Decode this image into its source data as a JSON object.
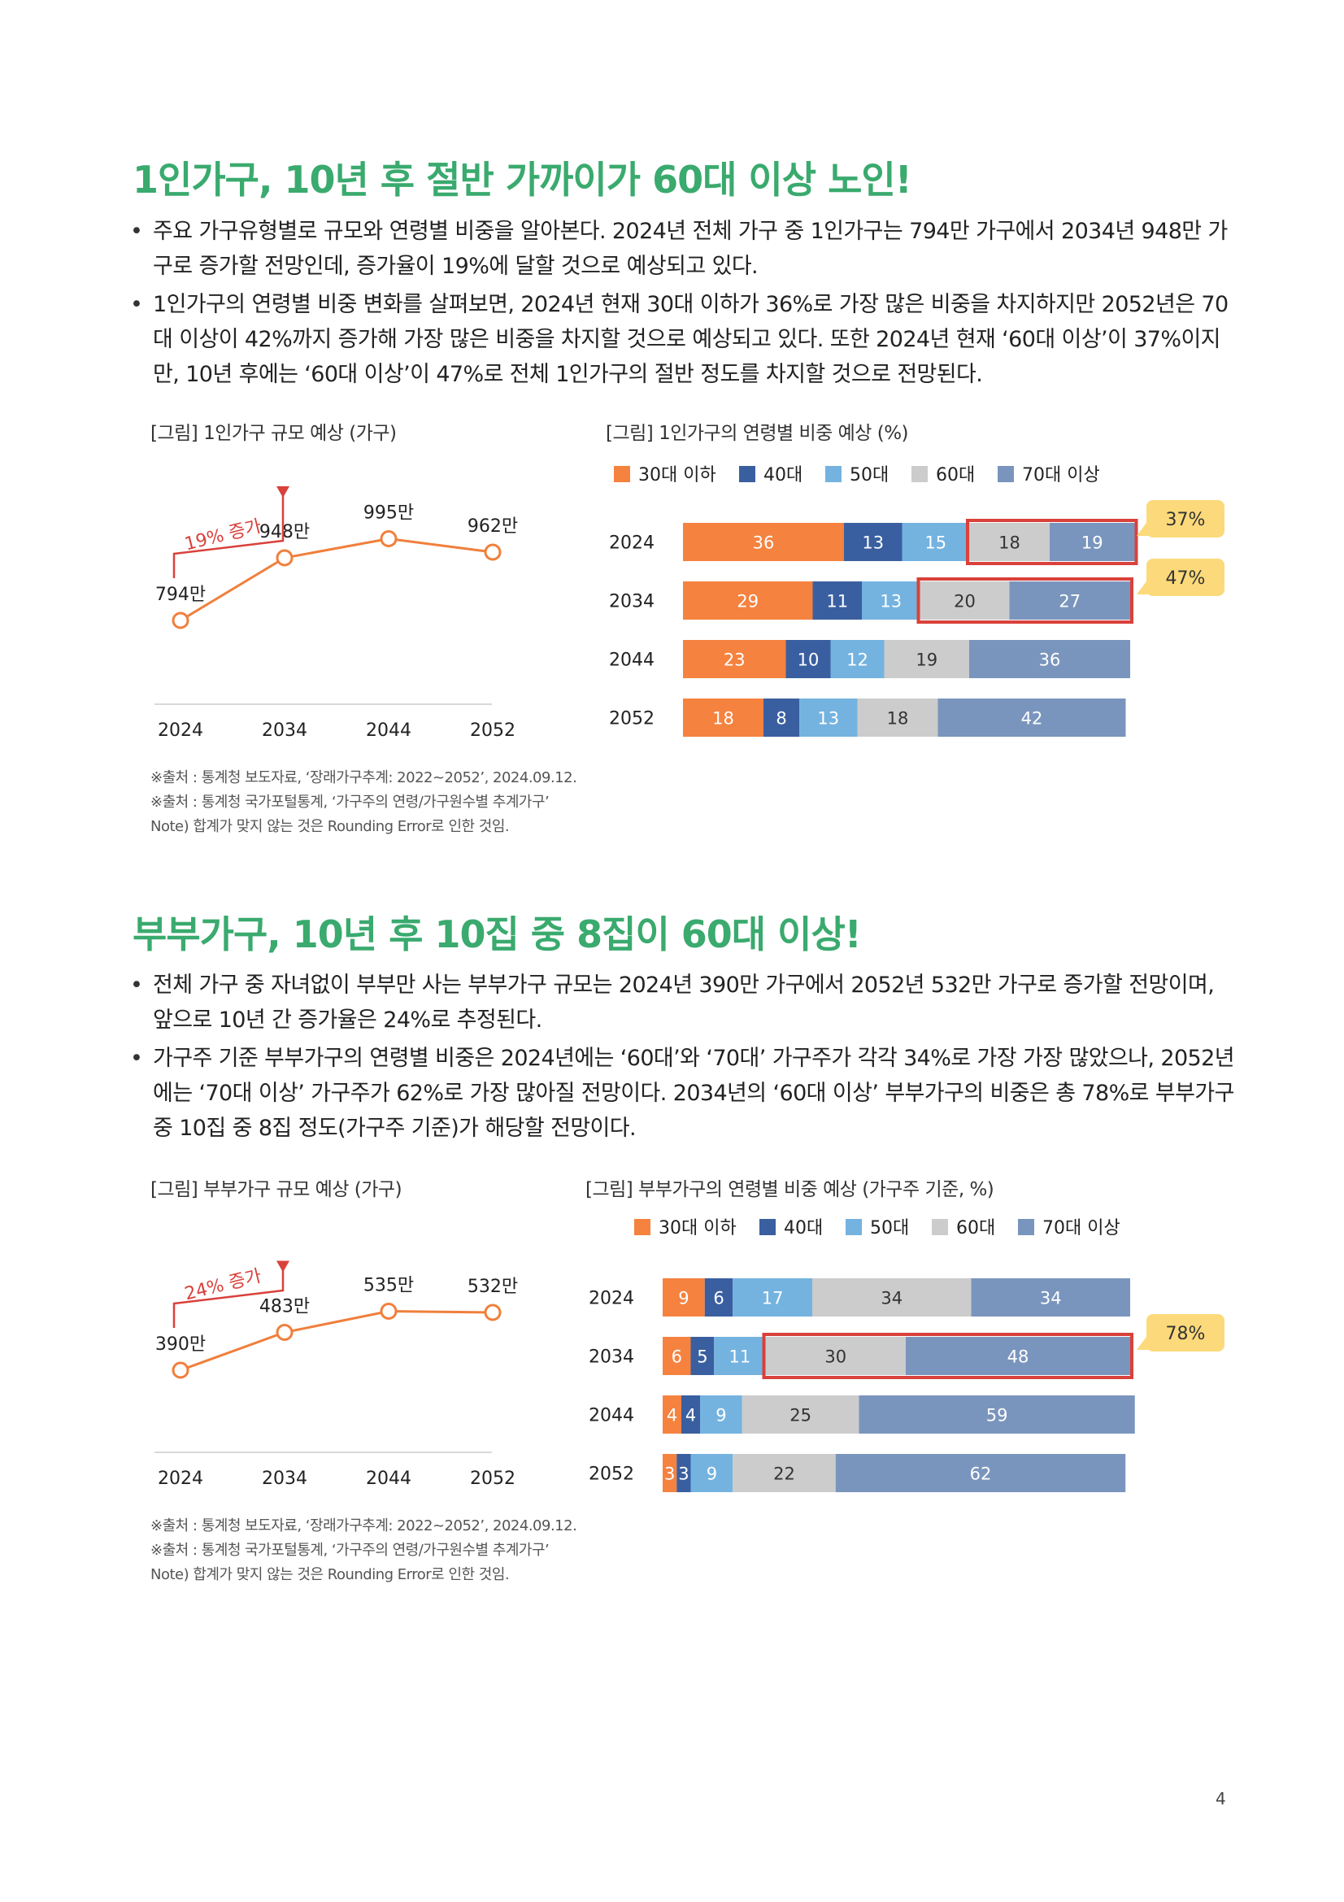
{
  "page_number": "4",
  "colors": {
    "title": "#3aaa6e",
    "line": "#f07f3c",
    "seg_30": "#f5823f",
    "seg_40": "#3a5fa0",
    "seg_50": "#74b3e0",
    "seg_60": "#cccccc",
    "seg_70": "#7a95bd",
    "highlight_box": "#d9413b",
    "callout_bg": "#fcd97a",
    "arrow": "#d9413b"
  },
  "section1": {
    "title": "1인가구, 10년 후 절반 가까이가 60대 이상 노인!",
    "bullets": [
      "주요 가구유형별로 규모와 연령별 비중을 알아본다. 2024년 전체 가구 중 1인가구는 794만 가구에서 2034년 948만 가구로 증가할 전망인데, 증가율이 19%에 달할 것으로 예상되고 있다.",
      "1인가구의 연령별 비중 변화를 살펴보면, 2024년 현재 30대 이하가 36%로 가장 많은 비중을 차지하지만 2052년은 70대 이상이 42%까지 증가해 가장 많은 비중을 차지할 것으로 예상되고 있다. 또한 2024년 현재 ‘60대 이상’이 37%이지만, 10년 후에는 ‘60대 이상’이 47%로 전체 1인가구의 절반 정도를 차지할 것으로 전망된다."
    ],
    "fig_left_label": "[그림] 1인가구 규모 예상 (가구)",
    "fig_right_label": "[그림] 1인가구의 연령별 비중 예상 (%)",
    "notes": [
      "※출처 : 통계청 보도자료, ‘장래가구추계: 2022~2052’, 2024.09.12.",
      "※출처 : 통계청 국가포털통계, ‘가구주의 연령/가구원수별 추계가구’",
      "Note) 합계가 맞지 않는 것은 Rounding Error로 인한 것임."
    ]
  },
  "section2": {
    "title": "부부가구, 10년 후 10집 중 8집이 60대 이상!",
    "bullets": [
      "전체 가구 중 자녀없이 부부만 사는 부부가구 규모는 2024년 390만 가구에서 2052년 532만 가구로 증가할 전망이며, 앞으로 10년 간 증가율은 24%로 추정된다.",
      "가구주 기준 부부가구의 연령별 비중은 2024년에는 ‘60대’와 ‘70대’ 가구주가 각각 34%로 가장 가장 많았으나, 2052년에는 ‘70대 이상’ 가구주가 62%로 가장 많아질 전망이다. 2034년의 ‘60대 이상’ 부부가구의 비중은 총 78%로 부부가구 중 10집 중 8집 정도(가구주 기준)가 해당할 전망이다."
    ],
    "fig_left_label": "[그림] 부부가구 규모 예상 (가구)",
    "fig_right_label": "[그림] 부부가구의 연령별 비중 예상 (가구주 기준, %)",
    "notes": [
      "※출처 : 통계청 보도자료, ‘장래가구추계: 2022~2052’, 2024.09.12.",
      "※출처 : 통계청 국가포털통계, ‘가구주의 연령/가구원수별 추계가구’",
      "Note) 합계가 맞지 않는 것은 Rounding Error로 인한 것임."
    ]
  },
  "chart_data": [
    {
      "id": "line1",
      "type": "line",
      "title": "[그림] 1인가구 규모 예상 (가구)",
      "x": [
        "2024",
        "2034",
        "2044",
        "2052"
      ],
      "values": [
        794,
        948,
        995,
        962
      ],
      "value_labels": [
        "794만",
        "948만",
        "995만",
        "962만"
      ],
      "annotation": "19% 증가",
      "ylim": [
        600,
        1100
      ]
    },
    {
      "id": "bar1",
      "type": "bar",
      "orientation": "horizontal-stacked",
      "title": "[그림] 1인가구의 연령별 비중 예상 (%)",
      "categories": [
        "2024",
        "2034",
        "2044",
        "2052"
      ],
      "legend": [
        "30대 이하",
        "40대",
        "50대",
        "60대",
        "70대 이상"
      ],
      "series": [
        {
          "name": "30대 이하",
          "values": [
            36,
            29,
            23,
            18
          ]
        },
        {
          "name": "40대",
          "values": [
            13,
            11,
            10,
            8
          ]
        },
        {
          "name": "50대",
          "values": [
            15,
            13,
            12,
            13
          ]
        },
        {
          "name": "60대",
          "values": [
            18,
            20,
            19,
            18
          ]
        },
        {
          "name": "70대 이상",
          "values": [
            19,
            27,
            36,
            42
          ]
        }
      ],
      "callouts": [
        {
          "row": 0,
          "text": "37%"
        },
        {
          "row": 1,
          "text": "47%"
        }
      ]
    },
    {
      "id": "line2",
      "type": "line",
      "title": "[그림] 부부가구 규모 예상 (가구)",
      "x": [
        "2024",
        "2034",
        "2044",
        "2052"
      ],
      "values": [
        390,
        483,
        535,
        532
      ],
      "value_labels": [
        "390만",
        "483만",
        "535만",
        "532만"
      ],
      "annotation": "24% 증가",
      "ylim": [
        200,
        700
      ]
    },
    {
      "id": "bar2",
      "type": "bar",
      "orientation": "horizontal-stacked",
      "title": "[그림] 부부가구의 연령별 비중 예상 (가구주 기준, %)",
      "categories": [
        "2024",
        "2034",
        "2044",
        "2052"
      ],
      "legend": [
        "30대 이하",
        "40대",
        "50대",
        "60대",
        "70대 이상"
      ],
      "series": [
        {
          "name": "30대 이하",
          "values": [
            9,
            6,
            4,
            3
          ]
        },
        {
          "name": "40대",
          "values": [
            6,
            5,
            4,
            3
          ]
        },
        {
          "name": "50대",
          "values": [
            17,
            11,
            9,
            9
          ]
        },
        {
          "name": "60대",
          "values": [
            34,
            30,
            25,
            22
          ]
        },
        {
          "name": "70대 이상",
          "values": [
            34,
            48,
            59,
            62
          ]
        }
      ],
      "callouts": [
        {
          "row": 1,
          "text": "78%"
        }
      ]
    }
  ]
}
